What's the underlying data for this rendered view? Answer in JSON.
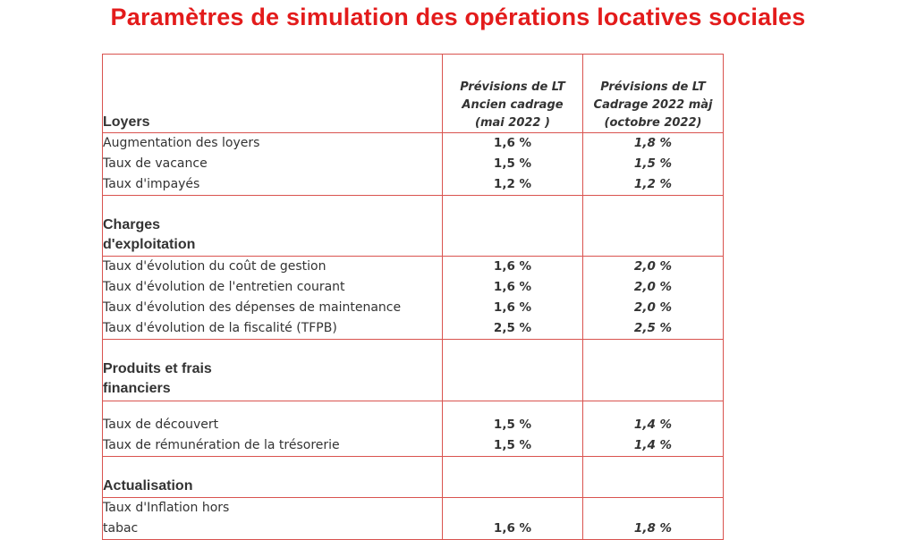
{
  "title": "Paramètres de simulation des opérations locatives sociales",
  "columns": {
    "col1": [
      "Prévisions de LT",
      "Ancien cadrage",
      "(mai 2022 )"
    ],
    "col2": [
      "Prévisions de LT",
      "Cadrage 2022 màj",
      "(octobre 2022)"
    ]
  },
  "sections": {
    "loyers": {
      "title": "Loyers",
      "rows": [
        {
          "label": "Augmentation des loyers",
          "v1": "1,6 %",
          "v2": "1,8 %"
        },
        {
          "label": "Taux de vacance",
          "v1": "1,5 %",
          "v2": "1,5 %"
        },
        {
          "label": "Taux d'impayés",
          "v1": "1,2 %",
          "v2": "1,2 %"
        }
      ]
    },
    "charges": {
      "title_l1": "Charges",
      "title_l2": "d'exploitation",
      "rows": [
        {
          "label": "Taux d'évolution du coût de gestion",
          "v1": "1,6 %",
          "v2": "2,0 %"
        },
        {
          "label": "Taux d'évolution de l'entretien courant",
          "v1": "1,6 %",
          "v2": "2,0 %"
        },
        {
          "label": "Taux d'évolution des dépenses de maintenance",
          "v1": "1,6 %",
          "v2": "2,0 %"
        },
        {
          "label": "Taux d'évolution de la fiscalité (TFPB)",
          "v1": "2,5 %",
          "v2": "2,5 %"
        }
      ]
    },
    "produits": {
      "title_l1": "Produits et frais",
      "title_l2": "financiers",
      "rows": [
        {
          "label": "Taux de découvert",
          "v1": "1,5 %",
          "v2": "1,4 %"
        },
        {
          "label": "Taux de rémunération de la trésorerie",
          "v1": "1,5 %",
          "v2": "1,4 %"
        }
      ]
    },
    "actualisation": {
      "title": "Actualisation",
      "rows": [
        {
          "label_l1": "Taux d'Inflation hors",
          "label_l2": "tabac",
          "v1": "1,6 %",
          "v2": "1,8 %"
        }
      ]
    }
  }
}
